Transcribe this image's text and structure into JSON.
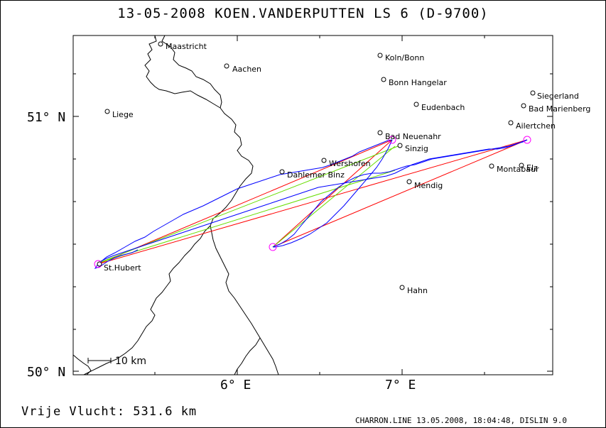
{
  "title": "13-05-2008    KOEN.VANDERPUTTEN    LS 6 (D-9700)",
  "axes": {
    "lat_labels": [
      "51° N",
      "50° N"
    ],
    "lon_labels": [
      "6° E",
      "7° E"
    ]
  },
  "places": [
    {
      "name": "Maastricht"
    },
    {
      "name": "Aachen"
    },
    {
      "name": "Koln/Bonn"
    },
    {
      "name": "Bonn Hangelar"
    },
    {
      "name": "Siegerland"
    },
    {
      "name": "Liege"
    },
    {
      "name": "Eudenbach"
    },
    {
      "name": "Bad Marienberg"
    },
    {
      "name": "Ailertchen"
    },
    {
      "name": "Bad Neuenahr"
    },
    {
      "name": "Sinzig"
    },
    {
      "name": "Wershofen"
    },
    {
      "name": "Dahlemer Binz"
    },
    {
      "name": "Montabaur"
    },
    {
      "name": "Elz"
    },
    {
      "name": "Mendig"
    },
    {
      "name": "St.Hubert"
    },
    {
      "name": "Hahn"
    }
  ],
  "scale_label": "10 km",
  "distance_text": "Vrije Vlucht:  531.6 km",
  "footer": "CHARRON.LINE 13.05.2008, 18:04:48, DISLIN 9.0",
  "colors": {
    "task_lines": "#ff0000",
    "optimized_lines": "#66dd00",
    "track": "#0000ff",
    "turnpoint_circles": "#ff00ff",
    "borders": "#000000"
  }
}
